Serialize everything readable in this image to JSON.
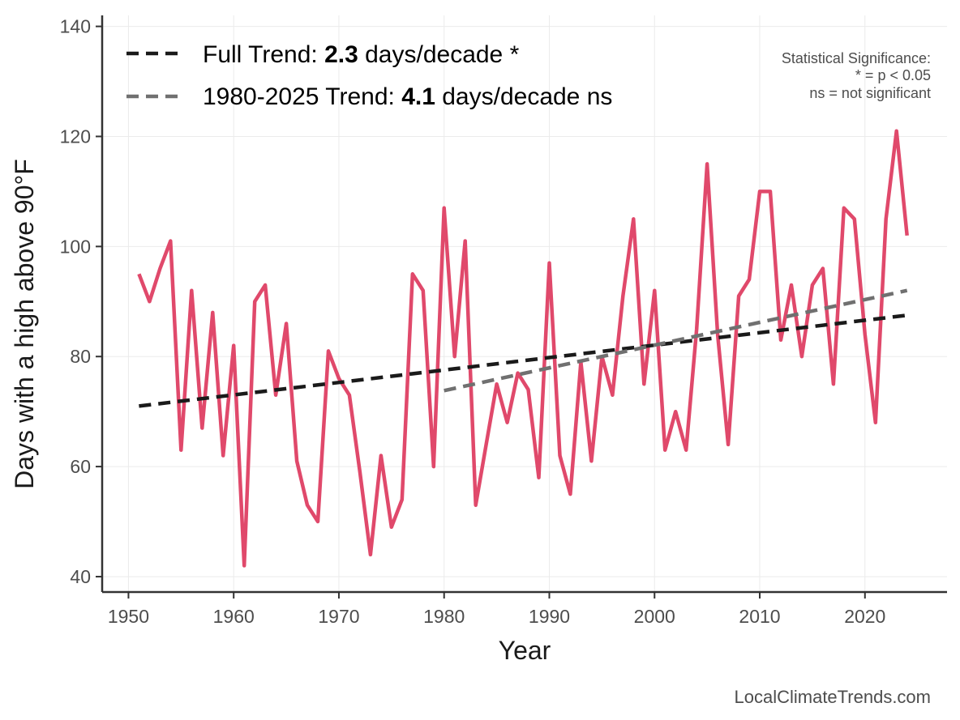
{
  "chart_data": {
    "type": "line",
    "xlabel": "Year",
    "ylabel": "Days with a high above 90°F",
    "xlim": [
      1947.5,
      2027.8
    ],
    "ylim": [
      37.2,
      142.0
    ],
    "x_ticks": [
      1950,
      1960,
      1970,
      1980,
      1990,
      2000,
      2010,
      2020
    ],
    "x_tick_labels": [
      "1950",
      "1960",
      "1970",
      "1980",
      "1990",
      "2000",
      "2010",
      "2020"
    ],
    "y_ticks": [
      40,
      60,
      80,
      100,
      120,
      140
    ],
    "y_tick_labels": [
      "40",
      "60",
      "80",
      "100",
      "120",
      "140"
    ],
    "grid": true,
    "series": [
      {
        "color": "#e0496b",
        "x": [
          1951,
          1952,
          1953,
          1954,
          1955,
          1956,
          1957,
          1958,
          1959,
          1960,
          1961,
          1962,
          1963,
          1964,
          1965,
          1966,
          1967,
          1968,
          1969,
          1970,
          1971,
          1972,
          1973,
          1974,
          1975,
          1976,
          1977,
          1978,
          1979,
          1980,
          1981,
          1982,
          1983,
          1984,
          1985,
          1986,
          1987,
          1988,
          1989,
          1990,
          1991,
          1992,
          1993,
          1994,
          1995,
          1996,
          1997,
          1998,
          1999,
          2000,
          2001,
          2002,
          2003,
          2004,
          2005,
          2006,
          2007,
          2008,
          2009,
          2010,
          2011,
          2012,
          2013,
          2014,
          2015,
          2016,
          2017,
          2018,
          2019,
          2020,
          2021,
          2022,
          2023,
          2024
        ],
        "values": [
          95,
          90,
          96,
          101,
          63,
          92,
          67,
          88,
          62,
          82,
          42,
          90,
          93,
          73,
          86,
          61,
          53,
          50,
          81,
          76,
          73,
          59,
          44,
          62,
          49,
          54,
          95,
          92,
          60,
          107,
          80,
          101,
          53,
          64,
          75,
          68,
          77,
          74,
          58,
          97,
          62,
          55,
          79,
          61,
          80,
          73,
          91,
          105,
          75,
          92,
          63,
          70,
          63,
          85,
          115,
          84,
          64,
          91,
          94,
          110,
          110,
          83,
          93,
          80,
          93,
          96,
          75,
          107,
          105,
          84,
          68,
          105,
          121,
          102
        ]
      },
      {
        "name": "Full Trend",
        "style": "dashed",
        "color": "#1a1a1a",
        "x": [
          1951,
          2024
        ],
        "values": [
          71.0,
          87.5
        ]
      },
      {
        "name": "1980-2025 Trend",
        "style": "dashed",
        "color": "#707070",
        "x": [
          1980,
          2024
        ],
        "values": [
          73.8,
          92.0
        ]
      }
    ],
    "legend": {
      "placement": "top-left",
      "entries": [
        {
          "prefix": "Full Trend: ",
          "value": "2.3",
          "suffix": " days/decade *",
          "color": "#1a1a1a"
        },
        {
          "prefix": "1980-2025 Trend: ",
          "value": "4.1",
          "suffix": " days/decade ns",
          "color": "#707070"
        }
      ]
    },
    "annotations": {
      "significance": [
        "Statistical Significance:",
        "* = p < 0.05",
        "ns = not significant"
      ],
      "credit": "LocalClimateTrends.com"
    }
  }
}
